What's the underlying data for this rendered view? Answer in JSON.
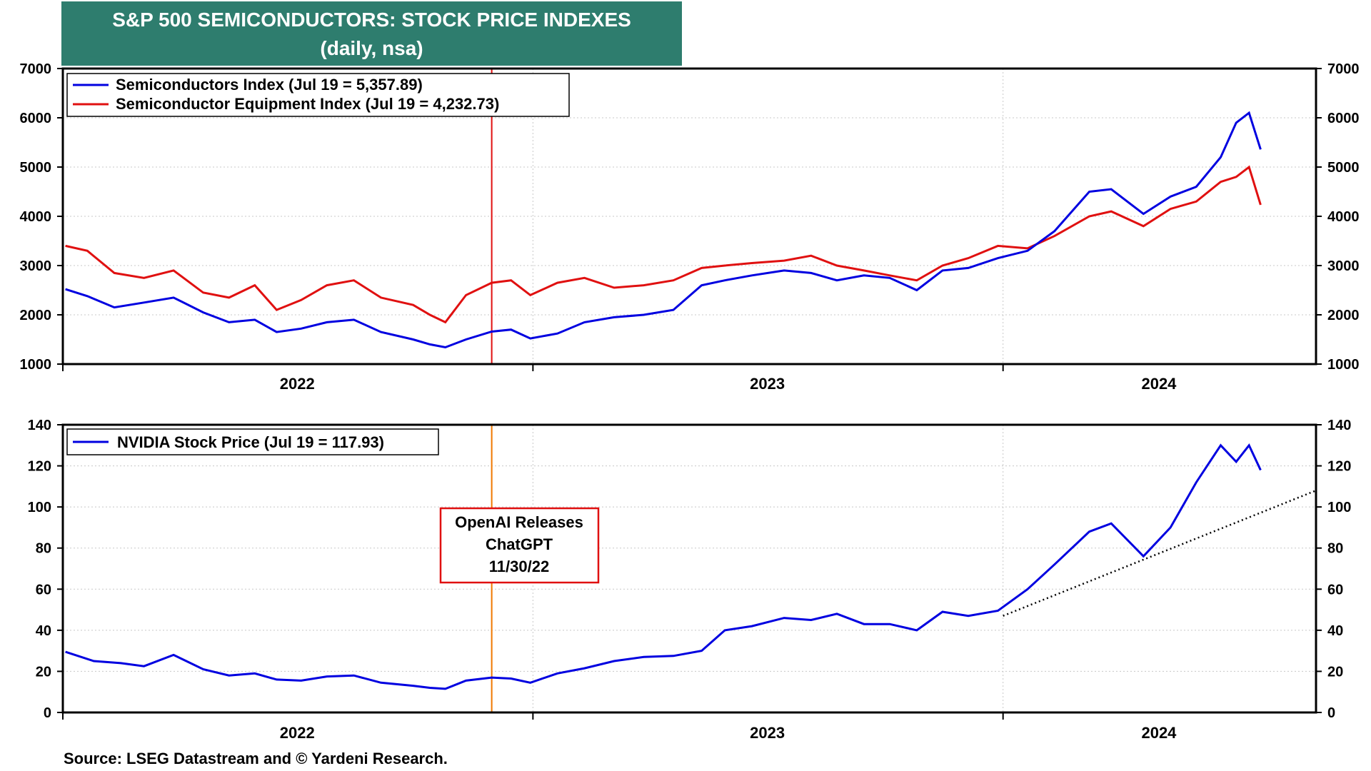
{
  "title": {
    "line1": "S&P 500 SEMICONDUCTORS: STOCK PRICE INDEXES",
    "line2": "(daily, nsa)"
  },
  "source": "Source: LSEG Datastream and © Yardeni Research.",
  "colors": {
    "blue": "#0000e0",
    "red": "#e01010",
    "orange": "#f07800",
    "title_bg": "#2e7d6e"
  },
  "chart_data": [
    {
      "type": "line",
      "x_ticks": [
        "2022",
        "2023",
        "2024"
      ],
      "y_ticks": [
        1000,
        2000,
        3000,
        4000,
        5000,
        6000,
        7000
      ],
      "ylim": [
        1000,
        7000
      ],
      "xlim": [
        "2022-01-01",
        "2024-08-31"
      ],
      "grid": true,
      "legend": "top-left",
      "series": [
        {
          "name": "Semiconductors Index (Jul 19 = 5,357.89)",
          "color": "#0000e0",
          "x": [
            "2022-01-03",
            "2022-01-20",
            "2022-02-10",
            "2022-03-05",
            "2022-03-28",
            "2022-04-20",
            "2022-05-10",
            "2022-05-30",
            "2022-06-16",
            "2022-07-05",
            "2022-07-25",
            "2022-08-15",
            "2022-09-05",
            "2022-09-30",
            "2022-10-13",
            "2022-10-25",
            "2022-11-10",
            "2022-11-30",
            "2022-12-15",
            "2022-12-30",
            "2023-01-20",
            "2023-02-10",
            "2023-03-05",
            "2023-03-28",
            "2023-04-20",
            "2023-05-12",
            "2023-05-30",
            "2023-06-20",
            "2023-07-15",
            "2023-08-05",
            "2023-08-25",
            "2023-09-15",
            "2023-10-05",
            "2023-10-26",
            "2023-11-15",
            "2023-12-05",
            "2023-12-28",
            "2024-01-20",
            "2024-02-10",
            "2024-03-08",
            "2024-03-25",
            "2024-04-19",
            "2024-05-10",
            "2024-05-30",
            "2024-06-18",
            "2024-06-30",
            "2024-07-10",
            "2024-07-19"
          ],
          "values": [
            2520,
            2380,
            2150,
            2250,
            2350,
            2050,
            1850,
            1900,
            1650,
            1720,
            1850,
            1900,
            1650,
            1500,
            1400,
            1340,
            1500,
            1660,
            1700,
            1520,
            1620,
            1850,
            1950,
            2000,
            2100,
            2600,
            2700,
            2800,
            2900,
            2850,
            2700,
            2800,
            2750,
            2500,
            2900,
            2950,
            3150,
            3300,
            3700,
            4500,
            4550,
            4050,
            4400,
            4600,
            5200,
            5900,
            6100,
            5357.89
          ]
        },
        {
          "name": "Semiconductor Equipment Index (Jul 19 = 4,232.73)",
          "color": "#e01010",
          "x": [
            "2022-01-03",
            "2022-01-20",
            "2022-02-10",
            "2022-03-05",
            "2022-03-28",
            "2022-04-20",
            "2022-05-10",
            "2022-05-30",
            "2022-06-16",
            "2022-07-05",
            "2022-07-25",
            "2022-08-15",
            "2022-09-05",
            "2022-09-30",
            "2022-10-13",
            "2022-10-25",
            "2022-11-10",
            "2022-11-30",
            "2022-12-15",
            "2022-12-30",
            "2023-01-20",
            "2023-02-10",
            "2023-03-05",
            "2023-03-28",
            "2023-04-20",
            "2023-05-12",
            "2023-05-30",
            "2023-06-20",
            "2023-07-15",
            "2023-08-05",
            "2023-08-25",
            "2023-09-15",
            "2023-10-05",
            "2023-10-26",
            "2023-11-15",
            "2023-12-05",
            "2023-12-28",
            "2024-01-20",
            "2024-02-10",
            "2024-03-08",
            "2024-03-25",
            "2024-04-19",
            "2024-05-10",
            "2024-05-30",
            "2024-06-18",
            "2024-06-30",
            "2024-07-10",
            "2024-07-19"
          ],
          "values": [
            3400,
            3300,
            2850,
            2750,
            2900,
            2450,
            2350,
            2600,
            2100,
            2300,
            2600,
            2700,
            2350,
            2200,
            2000,
            1850,
            2400,
            2650,
            2700,
            2400,
            2650,
            2750,
            2550,
            2600,
            2700,
            2950,
            3000,
            3050,
            3100,
            3200,
            3000,
            2900,
            2800,
            2700,
            3000,
            3150,
            3400,
            3350,
            3600,
            4000,
            4100,
            3800,
            4150,
            4300,
            4700,
            4800,
            5000,
            4232.73
          ]
        }
      ]
    },
    {
      "type": "line",
      "x_ticks": [
        "2022",
        "2023",
        "2024"
      ],
      "y_ticks": [
        0,
        20,
        40,
        60,
        80,
        100,
        120,
        140
      ],
      "ylim": [
        0,
        140
      ],
      "xlim": [
        "2022-01-01",
        "2024-08-31"
      ],
      "grid": true,
      "legend": "top-left",
      "series": [
        {
          "name": "NVIDIA Stock Price (Jul 19 = 117.93)",
          "color": "#0000e0",
          "x": [
            "2022-01-03",
            "2022-01-25",
            "2022-02-15",
            "2022-03-05",
            "2022-03-28",
            "2022-04-20",
            "2022-05-10",
            "2022-05-30",
            "2022-06-16",
            "2022-07-05",
            "2022-07-25",
            "2022-08-15",
            "2022-09-05",
            "2022-09-30",
            "2022-10-13",
            "2022-10-25",
            "2022-11-10",
            "2022-11-30",
            "2022-12-15",
            "2022-12-30",
            "2023-01-20",
            "2023-02-10",
            "2023-03-05",
            "2023-03-28",
            "2023-04-20",
            "2023-05-12",
            "2023-05-30",
            "2023-06-20",
            "2023-07-15",
            "2023-08-05",
            "2023-08-25",
            "2023-09-15",
            "2023-10-05",
            "2023-10-26",
            "2023-11-15",
            "2023-12-05",
            "2023-12-28",
            "2024-01-20",
            "2024-02-10",
            "2024-03-08",
            "2024-03-25",
            "2024-04-19",
            "2024-05-10",
            "2024-05-30",
            "2024-06-18",
            "2024-06-30",
            "2024-07-10",
            "2024-07-19"
          ],
          "values": [
            29.5,
            25,
            24,
            22.5,
            28,
            21,
            18,
            19,
            16,
            15.5,
            17.5,
            18,
            14.5,
            13,
            12,
            11.5,
            15.5,
            17,
            16.5,
            14.5,
            19,
            21.5,
            25,
            27,
            27.5,
            30,
            40,
            42,
            46,
            45,
            48,
            43,
            43,
            40,
            49,
            47,
            49.5,
            60,
            72,
            88,
            92,
            76,
            90,
            112,
            130,
            122,
            130,
            117.93
          ]
        }
      ]
    }
  ],
  "legend": {
    "semis": "Semiconductors Index (Jul 19 = 5,357.89)",
    "equip": "Semiconductor Equipment Index (Jul 19 = 4,232.73)",
    "nvidia": "NVIDIA Stock Price (Jul 19 = 117.93)"
  },
  "annotation": {
    "line1": "OpenAI Releases",
    "line2": "ChatGPT",
    "line3": "11/30/22",
    "date": "2022-11-30"
  },
  "trendline": {
    "start": {
      "x": "2024-01-01",
      "y": 47
    },
    "end": {
      "x": "2024-08-31",
      "y": 108
    }
  }
}
